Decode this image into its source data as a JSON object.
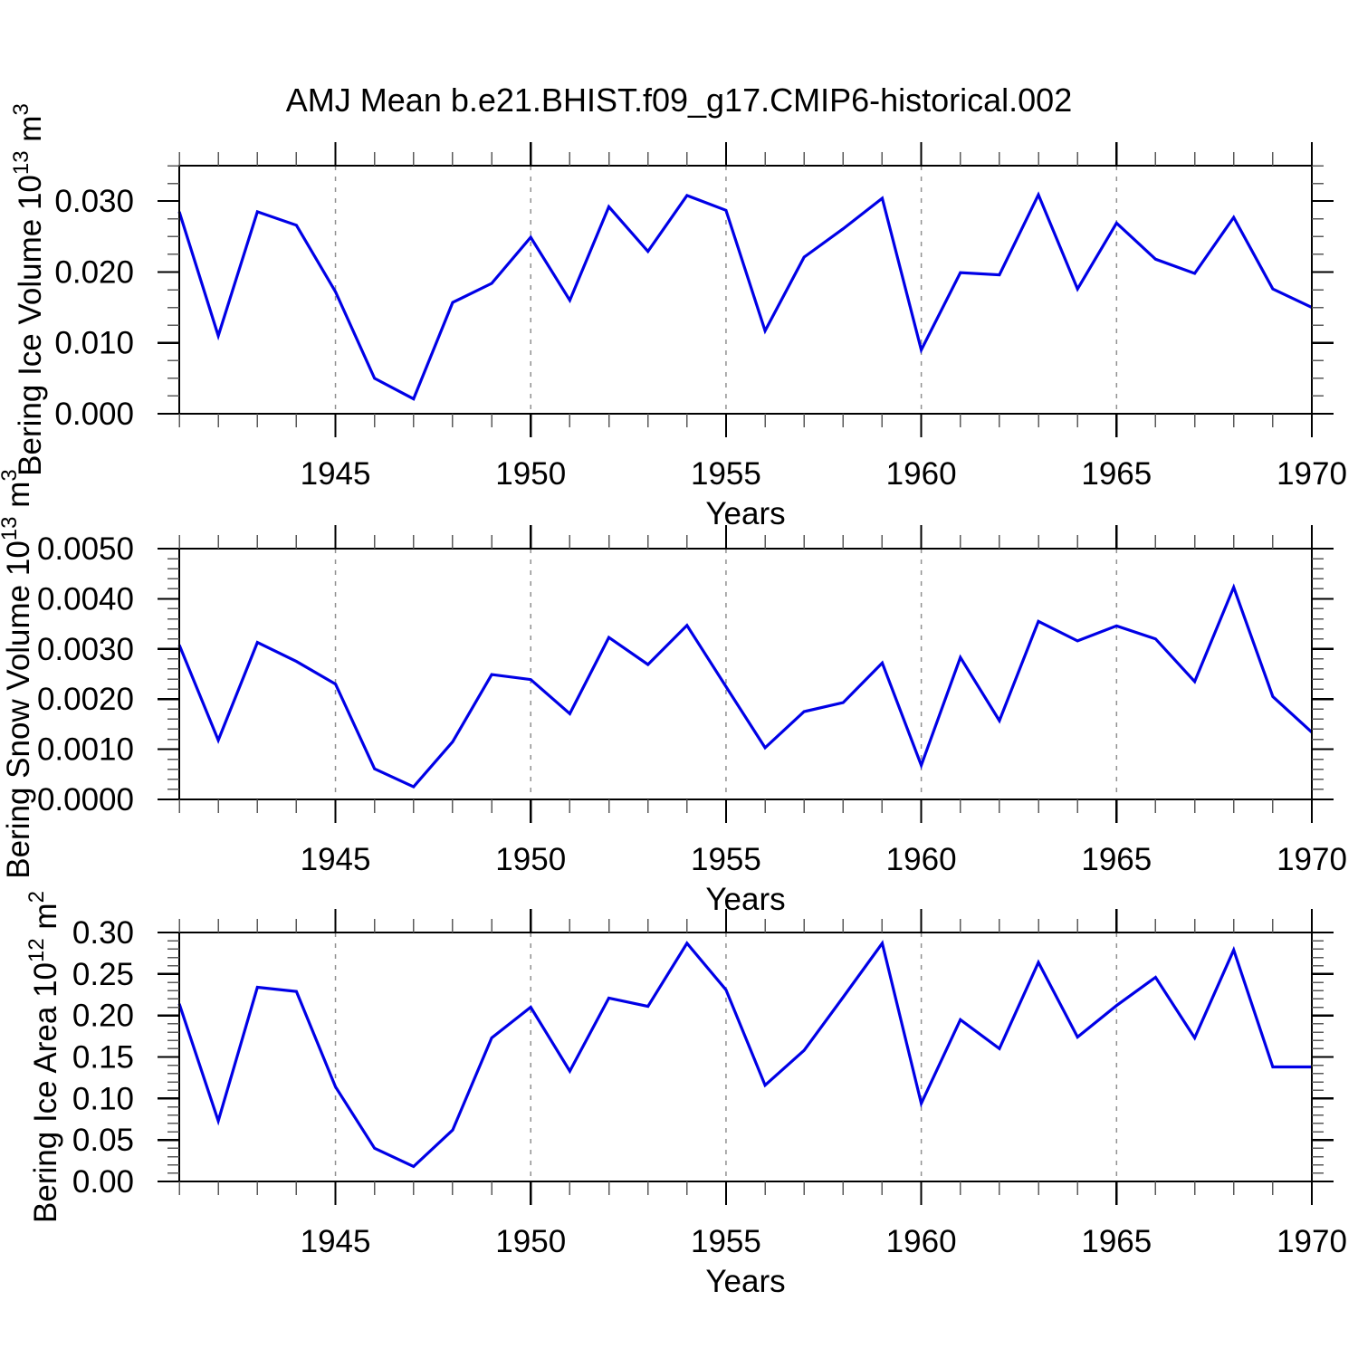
{
  "colors": {
    "line": "#0000E6",
    "grid": "#909090",
    "frame": "#000000",
    "minor_tick": "#5A5A5A",
    "text": "#000000",
    "background": "#FFFFFF"
  },
  "chart_data": {
    "type": "line",
    "title": "AMJ Mean b.e21.BHIST.f09_g17.CMIP6-historical.002",
    "xlabel": "Years",
    "legend": "none",
    "grid": "vertical-dashed",
    "x": [
      1941,
      1942,
      1943,
      1944,
      1945,
      1946,
      1947,
      1948,
      1949,
      1950,
      1951,
      1952,
      1953,
      1954,
      1955,
      1956,
      1957,
      1958,
      1959,
      1960,
      1961,
      1962,
      1963,
      1964,
      1965,
      1966,
      1967,
      1968,
      1969,
      1970
    ],
    "x_major_ticks": [
      1945,
      1950,
      1955,
      1960,
      1965,
      1970
    ],
    "x_tick_labels": [
      "1945",
      "1950",
      "1955",
      "1960",
      "1965",
      "1970"
    ],
    "x_minor_step": 1,
    "grid_years": [
      1945,
      1950,
      1955,
      1960,
      1965
    ],
    "panels": [
      {
        "id": "bering-ice-volume",
        "ylabel": "Bering Ice Volume 10¹³ m³",
        "ylabel_parts": [
          {
            "text": "Bering Ice Volume 10",
            "sup": false
          },
          {
            "text": "13",
            "sup": true
          },
          {
            "text": " m",
            "sup": false
          },
          {
            "text": "3",
            "sup": true
          }
        ],
        "ylim": [
          0,
          0.035
        ],
        "y_major_step": 0.01,
        "y_minor_step": 0.0025,
        "y_tick_labels": [
          "0.000",
          "0.010",
          "0.020",
          "0.030"
        ],
        "values": [
          0.0285,
          0.011,
          0.0285,
          0.0266,
          0.0172,
          0.005,
          0.0021,
          0.0157,
          0.0184,
          0.0249,
          0.016,
          0.0292,
          0.0229,
          0.0308,
          0.0287,
          0.0117,
          0.0221,
          0.0261,
          0.0304,
          0.009,
          0.0199,
          0.0196,
          0.0309,
          0.0176,
          0.0269,
          0.0218,
          0.0198,
          0.0277,
          0.0176,
          0.015
        ]
      },
      {
        "id": "bering-snow-volume",
        "ylabel": "Bering Snow Volume 10¹³ m³",
        "ylabel_parts": [
          {
            "text": "Bering Snow Volume 10",
            "sup": false
          },
          {
            "text": "13",
            "sup": true
          },
          {
            "text": " m",
            "sup": false
          },
          {
            "text": "3",
            "sup": true
          }
        ],
        "ylim": [
          0,
          0.005
        ],
        "y_major_step": 0.001,
        "y_minor_step": 0.0002,
        "y_tick_labels": [
          "0.0000",
          "0.0010",
          "0.0020",
          "0.0030",
          "0.0040",
          "0.0050"
        ],
        "values": [
          0.00308,
          0.00118,
          0.00313,
          0.00275,
          0.0023,
          0.00061,
          0.00025,
          0.00115,
          0.00249,
          0.00239,
          0.00171,
          0.00323,
          0.00269,
          0.00347,
          0.00225,
          0.00103,
          0.00175,
          0.00193,
          0.00272,
          0.00068,
          0.00283,
          0.00157,
          0.00355,
          0.00316,
          0.00346,
          0.0032,
          0.00235,
          0.00423,
          0.00205,
          0.00134
        ]
      },
      {
        "id": "bering-ice-area",
        "ylabel": "Bering Ice Area 10¹² m²",
        "ylabel_parts": [
          {
            "text": "Bering Ice Area 10",
            "sup": false
          },
          {
            "text": "12",
            "sup": true
          },
          {
            "text": " m",
            "sup": false
          },
          {
            "text": "2",
            "sup": true
          }
        ],
        "ylim": [
          0,
          0.3
        ],
        "y_major_step": 0.05,
        "y_minor_step": 0.01,
        "y_tick_labels": [
          "0.00",
          "0.05",
          "0.10",
          "0.15",
          "0.20",
          "0.25",
          "0.30"
        ],
        "values": [
          0.214,
          0.073,
          0.234,
          0.229,
          0.114,
          0.04,
          0.018,
          0.062,
          0.173,
          0.21,
          0.133,
          0.221,
          0.211,
          0.287,
          0.231,
          0.116,
          0.158,
          0.222,
          0.287,
          0.094,
          0.195,
          0.16,
          0.264,
          0.174,
          0.212,
          0.246,
          0.173,
          0.279,
          0.138,
          0.138
        ]
      }
    ]
  }
}
